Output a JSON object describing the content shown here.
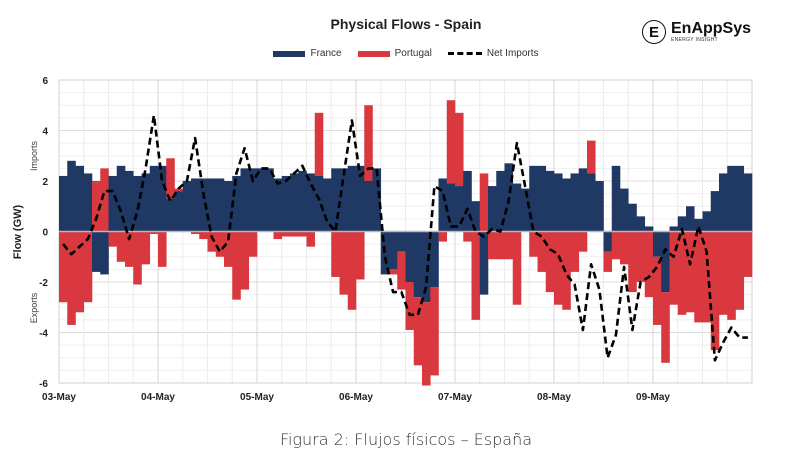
{
  "chart_data": {
    "type": "bar",
    "title": "Physical Flows - Spain",
    "xlabel": "",
    "ylabel": "Flow (GW)",
    "ylabel_upper": "Imports",
    "ylabel_lower": "Exports",
    "ylim": [
      -6,
      6
    ],
    "yticks": [
      6,
      4,
      2,
      0,
      -2,
      -4,
      -6
    ],
    "xtick_labels": [
      "03-May",
      "04-May",
      "05-May",
      "06-May",
      "07-May",
      "08-May",
      "09-May"
    ],
    "x_range_days": 7,
    "step_hours": 2,
    "grid": true,
    "legend_position": "top-center",
    "colors": {
      "France": "#1F3864",
      "Portugal": "#D9393E",
      "Net Imports": "#000000"
    },
    "legend": [
      "France",
      "Portugal",
      "Net Imports"
    ],
    "series": [
      {
        "name": "France",
        "kind": "bar",
        "values": [
          2.2,
          2.8,
          2.6,
          2.3,
          -1.6,
          -1.7,
          2.2,
          2.6,
          2.4,
          2.2,
          2.3,
          2.6,
          2.6,
          1.3,
          1.6,
          2.0,
          2.1,
          2.1,
          2.1,
          2.1,
          2.0,
          2.2,
          2.5,
          2.5,
          2.5,
          2.5,
          2.1,
          2.2,
          2.3,
          2.4,
          2.3,
          2.2,
          2.1,
          2.5,
          2.5,
          2.6,
          2.6,
          2.0,
          2.5,
          -1.7,
          -1.5,
          -0.8,
          -2.0,
          -2.6,
          -2.8,
          -2.2,
          2.1,
          1.9,
          1.8,
          2.4,
          1.2,
          -2.5,
          1.8,
          2.4,
          2.7,
          1.9,
          1.7,
          2.6,
          2.6,
          2.4,
          2.3,
          2.1,
          2.3,
          2.5,
          2.3,
          2.0,
          -0.8,
          2.6,
          1.7,
          1.1,
          0.6,
          0.2,
          -1.0,
          -2.4,
          0.2,
          0.6,
          1.0,
          0.5,
          0.8,
          1.6,
          2.3,
          2.6,
          2.6,
          2.3
        ],
        "extra_days_note": ""
      },
      {
        "name": "Portugal",
        "kind": "bar",
        "values": [
          -2.8,
          -3.7,
          -3.2,
          -2.8,
          2.0,
          2.5,
          -0.6,
          -1.2,
          -1.4,
          -2.1,
          -1.3,
          -0.1,
          -1.4,
          1.6,
          0.1,
          0.0,
          -0.1,
          -0.3,
          -0.8,
          -1.0,
          -1.4,
          -2.7,
          -2.3,
          -1.0,
          0.0,
          0.0,
          -0.3,
          -0.2,
          -0.2,
          -0.2,
          -0.6,
          2.5,
          0.0,
          -1.8,
          -2.5,
          -3.1,
          -1.9,
          3.0,
          0.0,
          0.0,
          -0.2,
          -1.5,
          -1.9,
          -2.7,
          -3.3,
          -3.5,
          -0.4,
          3.3,
          2.9,
          -0.4,
          -3.5,
          2.3,
          -1.1,
          -1.1,
          -1.1,
          -2.9,
          0.0,
          -1.0,
          -1.6,
          -2.4,
          -2.9,
          -3.1,
          -1.6,
          -0.8,
          1.3,
          0.0,
          -0.8,
          -1.1,
          -1.3,
          -2.4,
          -2.0,
          -2.6,
          -2.7,
          -2.8,
          -2.9,
          -3.3,
          -3.2,
          -3.6,
          -3.6,
          -4.7,
          -3.3,
          -3.5,
          -3.1,
          -1.8
        ]
      },
      {
        "name": "Net Imports",
        "kind": "line",
        "values": [
          -0.5,
          -0.9,
          -0.6,
          -0.3,
          0.5,
          1.6,
          1.6,
          0.8,
          -0.3,
          0.8,
          2.5,
          4.6,
          2.0,
          1.2,
          1.7,
          2.0,
          3.7,
          1.5,
          -0.2,
          -0.8,
          -0.4,
          2.3,
          3.3,
          2.0,
          2.5,
          2.5,
          1.9,
          2.0,
          2.3,
          2.6,
          1.9,
          1.3,
          0.4,
          0.0,
          2.2,
          4.4,
          2.2,
          2.5,
          2.5,
          -1.0,
          -2.4,
          -2.4,
          -3.3,
          -3.3,
          -2.2,
          1.8,
          1.6,
          0.2,
          0.2,
          0.9,
          0.0,
          -0.2,
          0.1,
          0.0,
          1.2,
          3.5,
          1.8,
          0.0,
          -0.2,
          -0.7,
          -0.9,
          -1.7,
          -2.1,
          -3.9,
          -1.3,
          -2.3,
          -5.0,
          -4.1,
          -1.4,
          -3.9,
          -2.0,
          -1.8,
          -1.4,
          -0.7,
          -1.0,
          0.1,
          -1.3,
          0.2,
          -0.8,
          -5.1,
          -4.4,
          -3.8,
          -4.2,
          -4.2
        ]
      }
    ]
  },
  "header": {
    "logo_name": "EnAppSys",
    "logo_tagline": "ENERGY INSIGHT",
    "logo_glyph": "E"
  },
  "caption": "Figura 2: Flujos físicos – España"
}
